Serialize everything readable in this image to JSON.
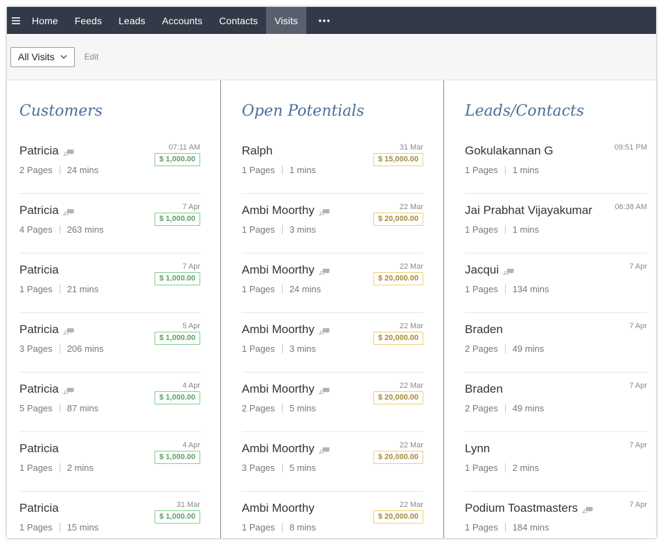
{
  "nav": {
    "items": [
      {
        "label": "Home",
        "name": "nav-home",
        "active": false
      },
      {
        "label": "Feeds",
        "name": "nav-feeds",
        "active": false
      },
      {
        "label": "Leads",
        "name": "nav-leads",
        "active": false
      },
      {
        "label": "Accounts",
        "name": "nav-accounts",
        "active": false
      },
      {
        "label": "Contacts",
        "name": "nav-contacts",
        "active": false
      },
      {
        "label": "Visits",
        "name": "nav-visits",
        "active": true
      }
    ],
    "menu_icon": "hamburger-icon",
    "more_icon": "more-horizontal-icon"
  },
  "toolbar": {
    "view_label": "All Visits",
    "edit_label": "Edit"
  },
  "colors": {
    "nav_bg": "#323a48",
    "nav_active_bg": "#58606d",
    "title": "#4a6f98",
    "amount_green": "#5f9e68",
    "amount_yellow": "#a38a3c"
  },
  "columns": [
    {
      "key": "customers",
      "title": "Customers",
      "amount_style": "green",
      "rows": [
        {
          "name": "Patricia",
          "chat": true,
          "time": "07:11 AM",
          "pages": "2 Pages",
          "mins": "24 mins",
          "amount": "$ 1,000.00"
        },
        {
          "name": "Patricia",
          "chat": true,
          "time": "7 Apr",
          "pages": "4 Pages",
          "mins": "263 mins",
          "amount": "$ 1,000.00"
        },
        {
          "name": "Patricia",
          "chat": false,
          "time": "7 Apr",
          "pages": "1 Pages",
          "mins": "21 mins",
          "amount": "$ 1,000.00"
        },
        {
          "name": "Patricia",
          "chat": true,
          "time": "5 Apr",
          "pages": "3 Pages",
          "mins": "206 mins",
          "amount": "$ 1,000.00"
        },
        {
          "name": "Patricia",
          "chat": true,
          "time": "4 Apr",
          "pages": "5 Pages",
          "mins": "87 mins",
          "amount": "$ 1,000.00"
        },
        {
          "name": "Patricia",
          "chat": false,
          "time": "4 Apr",
          "pages": "1 Pages",
          "mins": "2 mins",
          "amount": "$ 1,000.00"
        },
        {
          "name": "Patricia",
          "chat": false,
          "time": "31 Mar",
          "pages": "1 Pages",
          "mins": "15 mins",
          "amount": "$ 1,000.00"
        }
      ]
    },
    {
      "key": "potentials",
      "title": "Open Potentials",
      "amount_style": "yellow",
      "rows": [
        {
          "name": "Ralph",
          "chat": false,
          "time": "31 Mar",
          "pages": "1 Pages",
          "mins": "1 mins",
          "amount": "$ 15,000.00"
        },
        {
          "name": "Ambi Moorthy",
          "chat": true,
          "time": "22 Mar",
          "pages": "1 Pages",
          "mins": "3 mins",
          "amount": "$ 20,000.00"
        },
        {
          "name": "Ambi Moorthy",
          "chat": true,
          "time": "22 Mar",
          "pages": "1 Pages",
          "mins": "24 mins",
          "amount": "$ 20,000.00"
        },
        {
          "name": "Ambi Moorthy",
          "chat": true,
          "time": "22 Mar",
          "pages": "1 Pages",
          "mins": "3 mins",
          "amount": "$ 20,000.00"
        },
        {
          "name": "Ambi Moorthy",
          "chat": true,
          "time": "22 Mar",
          "pages": "2 Pages",
          "mins": "5 mins",
          "amount": "$ 20,000.00"
        },
        {
          "name": "Ambi Moorthy",
          "chat": true,
          "time": "22 Mar",
          "pages": "3 Pages",
          "mins": "5 mins",
          "amount": "$ 20,000.00"
        },
        {
          "name": "Ambi Moorthy",
          "chat": false,
          "time": "22 Mar",
          "pages": "1 Pages",
          "mins": "8 mins",
          "amount": "$ 20,000.00"
        }
      ]
    },
    {
      "key": "leads",
      "title": "Leads/Contacts",
      "amount_style": "none",
      "rows": [
        {
          "name": "Gokulakannan G",
          "chat": false,
          "time": "09:51 PM",
          "pages": "1 Pages",
          "mins": "1 mins",
          "amount": ""
        },
        {
          "name": "Jai Prabhat Vijayakumar",
          "chat": false,
          "time": "06:38 AM",
          "pages": "1 Pages",
          "mins": "1 mins",
          "amount": ""
        },
        {
          "name": "Jacqui",
          "chat": true,
          "time": "7 Apr",
          "pages": "1 Pages",
          "mins": "134 mins",
          "amount": ""
        },
        {
          "name": "Braden",
          "chat": false,
          "time": "7 Apr",
          "pages": "2 Pages",
          "mins": "49 mins",
          "amount": ""
        },
        {
          "name": "Braden",
          "chat": false,
          "time": "7 Apr",
          "pages": "2 Pages",
          "mins": "49 mins",
          "amount": ""
        },
        {
          "name": "Lynn",
          "chat": false,
          "time": "7 Apr",
          "pages": "1 Pages",
          "mins": "2 mins",
          "amount": ""
        },
        {
          "name": "Podium Toastmasters",
          "chat": true,
          "time": "7 Apr",
          "pages": "1 Pages",
          "mins": "184 mins",
          "amount": ""
        }
      ]
    }
  ]
}
